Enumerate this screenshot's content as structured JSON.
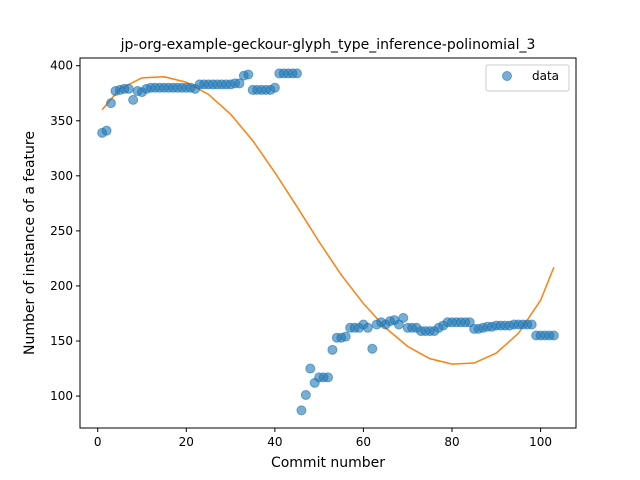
{
  "chart_data": {
    "type": "scatter",
    "title": "jp-org-example-geckour-glyph_type_inference-polinomial_3",
    "xlabel": "Commit number",
    "ylabel": "Number of instance of a feature",
    "xlim": [
      -4,
      108
    ],
    "ylim": [
      71,
      407
    ],
    "xticks": [
      0,
      20,
      40,
      60,
      80,
      100
    ],
    "yticks": [
      100,
      150,
      200,
      250,
      300,
      350,
      400
    ],
    "grid": false,
    "legend": {
      "position": "top-right",
      "entries": [
        "data"
      ]
    },
    "colors": {
      "data": "#1f77b4",
      "fit": "#ff7f0e"
    },
    "series": [
      {
        "name": "data",
        "kind": "scatter",
        "x": [
          1,
          2,
          3,
          4,
          5,
          6,
          7,
          8,
          9,
          10,
          11,
          12,
          13,
          14,
          15,
          16,
          17,
          18,
          19,
          20,
          21,
          22,
          23,
          24,
          25,
          26,
          27,
          28,
          29,
          30,
          31,
          32,
          33,
          34,
          35,
          36,
          37,
          38,
          39,
          40,
          41,
          42,
          43,
          44,
          45,
          46,
          47,
          48,
          49,
          50,
          51,
          52,
          53,
          54,
          55,
          56,
          57,
          58,
          59,
          60,
          61,
          62,
          63,
          64,
          65,
          66,
          67,
          68,
          69,
          70,
          71,
          72,
          73,
          74,
          75,
          76,
          77,
          78,
          79,
          80,
          81,
          82,
          83,
          84,
          85,
          86,
          87,
          88,
          89,
          90,
          91,
          92,
          93,
          94,
          95,
          96,
          97,
          98,
          99,
          100,
          101,
          102,
          103
        ],
        "y": [
          339,
          341,
          366,
          377,
          378,
          379,
          379,
          369,
          377,
          376,
          379,
          380,
          380,
          380,
          380,
          380,
          380,
          380,
          380,
          380,
          380,
          379,
          383,
          383,
          383,
          383,
          383,
          383,
          383,
          383,
          384,
          384,
          391,
          392,
          378,
          378,
          378,
          378,
          378,
          380,
          393,
          393,
          393,
          393,
          393,
          87,
          101,
          125,
          112,
          117,
          117,
          117,
          142,
          153,
          153,
          154,
          162,
          162,
          162,
          165,
          162,
          143,
          165,
          167,
          165,
          168,
          169,
          165,
          171,
          162,
          162,
          162,
          159,
          159,
          159,
          159,
          162,
          164,
          167,
          167,
          167,
          167,
          167,
          167,
          161,
          161,
          162,
          163,
          163,
          164,
          164,
          164,
          164,
          165,
          165,
          165,
          165,
          165,
          155,
          155,
          155,
          155,
          155
        ]
      },
      {
        "name": "",
        "kind": "line",
        "x": [
          1,
          5,
          10,
          15,
          20,
          25,
          30,
          35,
          40,
          45,
          50,
          55,
          60,
          65,
          70,
          75,
          80,
          85,
          90,
          95,
          100,
          103
        ],
        "y": [
          360,
          379,
          389,
          390,
          385,
          374,
          356,
          332,
          303,
          272,
          240,
          210,
          184,
          162,
          145,
          134,
          129,
          130,
          139,
          157,
          187,
          217
        ]
      }
    ]
  }
}
